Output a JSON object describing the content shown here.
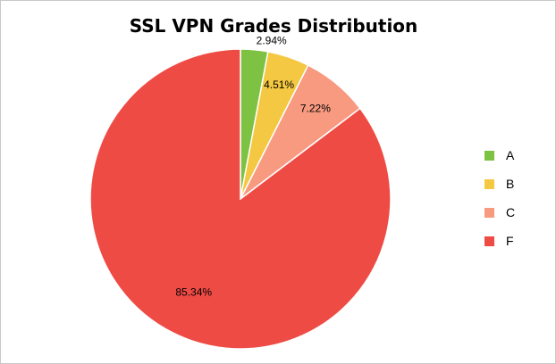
{
  "chart_data": {
    "type": "pie",
    "title": "SSL VPN Grades Distribution",
    "categories": [
      "A",
      "B",
      "C",
      "F"
    ],
    "values": [
      2.94,
      4.51,
      7.22,
      85.34
    ],
    "data_labels": [
      "2.94%",
      "4.51%",
      "7.22%",
      "85.34%"
    ],
    "colors": [
      "#7dc242",
      "#f4c842",
      "#f79a80",
      "#ef4b45"
    ],
    "legend_position": "right",
    "start_angle": "12 o'clock, clockwise"
  }
}
